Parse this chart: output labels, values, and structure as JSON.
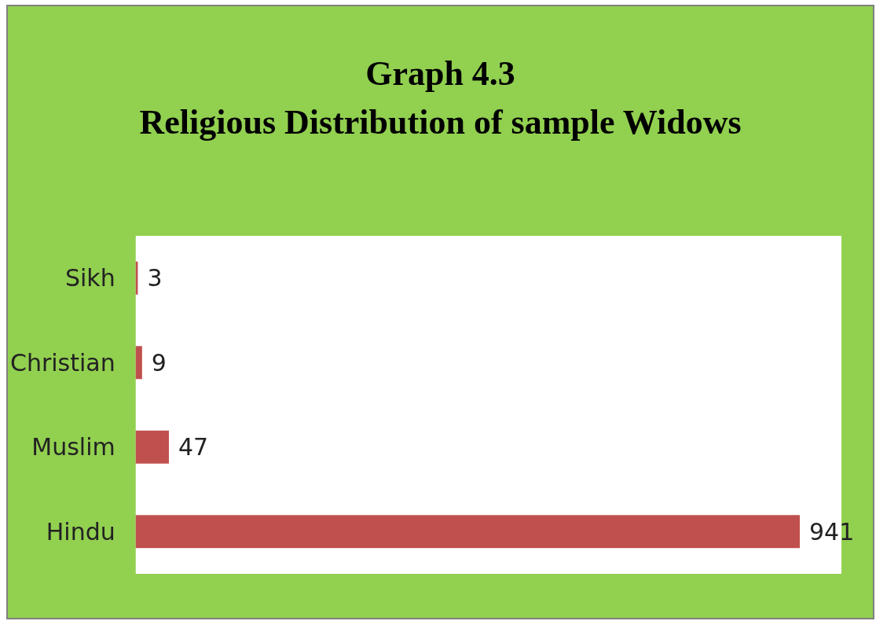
{
  "chart_data": {
    "type": "bar",
    "orientation": "horizontal",
    "title": "Graph 4.3",
    "subtitle": "Religious Distribution of sample Widows",
    "categories": [
      "Sikh",
      "Christian",
      "Muslim",
      "Hindu"
    ],
    "values": [
      3,
      9,
      47,
      941
    ],
    "color": "#c0504d",
    "data_labels": true
  }
}
